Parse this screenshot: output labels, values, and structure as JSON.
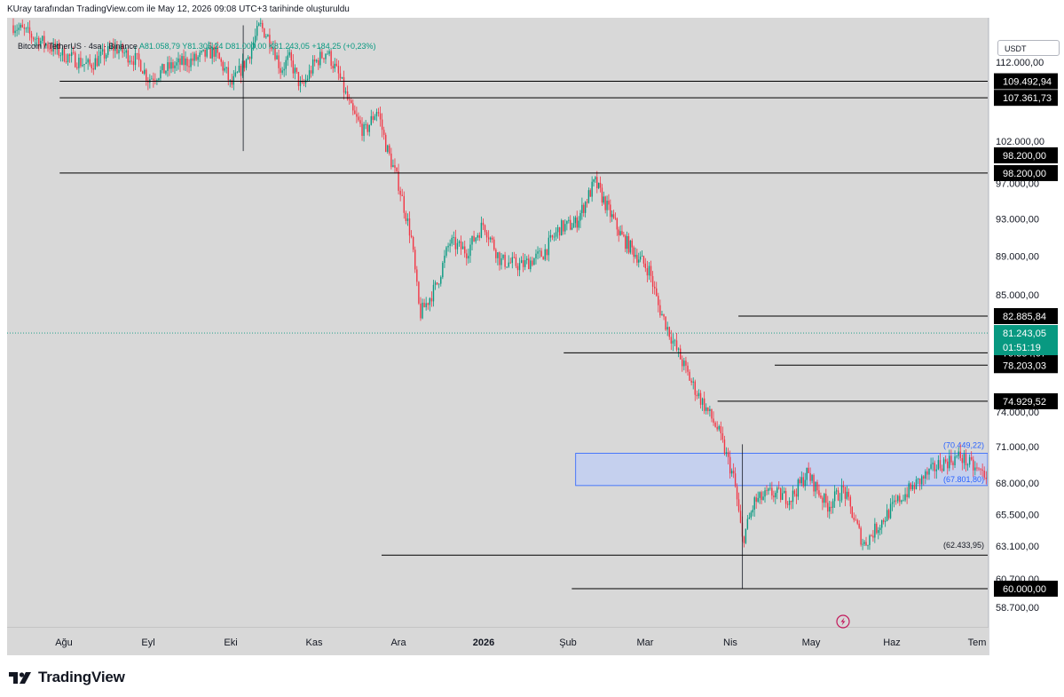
{
  "header": {
    "caption": "KUray tarafından TradingView.com ile May 12, 2026 09:08 UTC+3 tarihinde oluşturuldu"
  },
  "legend": {
    "symbol": "Bitcoin / TetherUS · 4sa · Binance",
    "ohlc": "A81.058,79 Y81.305,24 D81.000,00 K81.243,05 +184,25 (+0,23%)"
  },
  "currency": "USDT",
  "footer": {
    "brand": "TradingView"
  },
  "colors": {
    "background": "#d8d8d8",
    "up_candle": "#089981",
    "down_candle": "#f23645",
    "zone_fill": "#c5d0ee",
    "zone_border": "#2962ff",
    "last_price": "#089981",
    "line": "#000000"
  },
  "chart_data": {
    "type": "candlestick",
    "x_axis": {
      "labels": [
        "Ağu",
        "Eyl",
        "Eki",
        "Kas",
        "Ara",
        "2026",
        "Şub",
        "Mar",
        "Nis",
        "May",
        "Haz",
        "Tem"
      ]
    },
    "y_axis": {
      "ticks": [
        "112.000,00",
        "102.000,00",
        "97.000,00",
        "93.000,00",
        "89.000,00",
        "85.000,00",
        "74.000,00",
        "71.000,00",
        "68.000,00",
        "65.500,00",
        "63.100,00",
        "60.700,00",
        "58.700,00"
      ],
      "tick_values": [
        112000,
        102000,
        97000,
        93000,
        89000,
        85000,
        74000,
        71000,
        68000,
        65500,
        63100,
        60700,
        58700
      ],
      "scale": "log",
      "range": [
        57000,
        117000
      ]
    },
    "horizontal_levels": [
      {
        "value": 109492.94,
        "label": "109.492,94",
        "start_month": -0.05
      },
      {
        "value": 107361.73,
        "label": "107.361,73",
        "start_month": -0.05
      },
      {
        "value": 98200.0,
        "label": "98.200,00",
        "start_month": -0.05
      },
      {
        "value": 82885.84,
        "label": "82.885,84",
        "start_month": 8.1
      },
      {
        "value": 79354.67,
        "label": "79.354,67",
        "start_month": 5.95
      },
      {
        "value": 78203.03,
        "label": "78.203,03",
        "start_month": 8.55
      },
      {
        "value": 74929.52,
        "label": "74.929,52",
        "start_month": 7.85
      },
      {
        "value": 62433.95,
        "label": "(62.433,95)",
        "start_month": 3.8
      },
      {
        "value": 60000.0,
        "label": "60.000,00",
        "start_month": 6.05
      }
    ],
    "extra_price_badge": {
      "value": 98200.0,
      "label": "98.200,00"
    },
    "zone": {
      "low": 67801.8,
      "high": 70449.22,
      "low_label": "(67.801,80)",
      "high_label": "(70.449,22)",
      "start_month": 6.1
    },
    "last_price": {
      "value": 81243.05,
      "label": "81.243,05",
      "countdown": "01:51:19"
    },
    "price_path": [
      [
        -0.6,
        117000
      ],
      [
        -0.3,
        115000
      ],
      [
        0.0,
        113000
      ],
      [
        0.3,
        111500
      ],
      [
        0.6,
        114000
      ],
      [
        0.9,
        112000
      ],
      [
        1.0,
        109800
      ],
      [
        1.3,
        111500
      ],
      [
        1.6,
        112500
      ],
      [
        1.8,
        113500
      ],
      [
        1.95,
        110500
      ],
      [
        2.0,
        108800
      ],
      [
        2.2,
        112500
      ],
      [
        2.35,
        117000
      ],
      [
        2.5,
        114500
      ],
      [
        2.6,
        111000
      ],
      [
        2.7,
        112500
      ],
      [
        2.85,
        108500
      ],
      [
        3.0,
        111800
      ],
      [
        3.15,
        113500
      ],
      [
        3.3,
        110000
      ],
      [
        3.45,
        105500
      ],
      [
        3.6,
        103000
      ],
      [
        3.75,
        106000
      ],
      [
        3.85,
        101500
      ],
      [
        4.0,
        97000
      ],
      [
        4.15,
        91000
      ],
      [
        4.25,
        83000
      ],
      [
        4.45,
        86000
      ],
      [
        4.6,
        90500
      ],
      [
        4.8,
        89500
      ],
      [
        5.0,
        92500
      ],
      [
        5.2,
        88500
      ],
      [
        5.45,
        88000
      ],
      [
        5.7,
        89200
      ],
      [
        5.9,
        92000
      ],
      [
        6.1,
        92500
      ],
      [
        6.35,
        97200
      ],
      [
        6.55,
        93500
      ],
      [
        6.7,
        91000
      ],
      [
        6.85,
        89500
      ],
      [
        7.05,
        87500
      ],
      [
        7.15,
        84000
      ],
      [
        7.35,
        80000
      ],
      [
        7.55,
        76500
      ],
      [
        7.85,
        72500
      ],
      [
        8.05,
        68200
      ],
      [
        8.15,
        63500
      ],
      [
        8.3,
        66500
      ],
      [
        8.5,
        67200
      ],
      [
        8.75,
        66800
      ],
      [
        8.95,
        68800
      ],
      [
        9.2,
        66200
      ],
      [
        9.4,
        67500
      ],
      [
        9.65,
        63200
      ],
      [
        9.85,
        64800
      ],
      [
        10.1,
        66800
      ],
      [
        10.3,
        68000
      ],
      [
        10.55,
        69500
      ],
      [
        10.8,
        70200
      ],
      [
        11.0,
        69000
      ],
      [
        11.2,
        68500
      ],
      [
        11.4,
        67200
      ],
      [
        11.6,
        66500
      ],
      [
        11.8,
        67000
      ],
      [
        12.0,
        68500
      ],
      [
        12.2,
        70000
      ],
      [
        12.45,
        71200
      ],
      [
        12.7,
        73000
      ],
      [
        12.9,
        74500
      ],
      [
        13.1,
        75500
      ],
      [
        13.3,
        77500
      ],
      [
        13.5,
        78800
      ],
      [
        13.7,
        78000
      ],
      [
        13.9,
        76800
      ],
      [
        14.1,
        79200
      ],
      [
        14.3,
        80500
      ],
      [
        14.55,
        81800
      ],
      [
        14.75,
        81200
      ],
      [
        14.8,
        81243
      ]
    ]
  }
}
